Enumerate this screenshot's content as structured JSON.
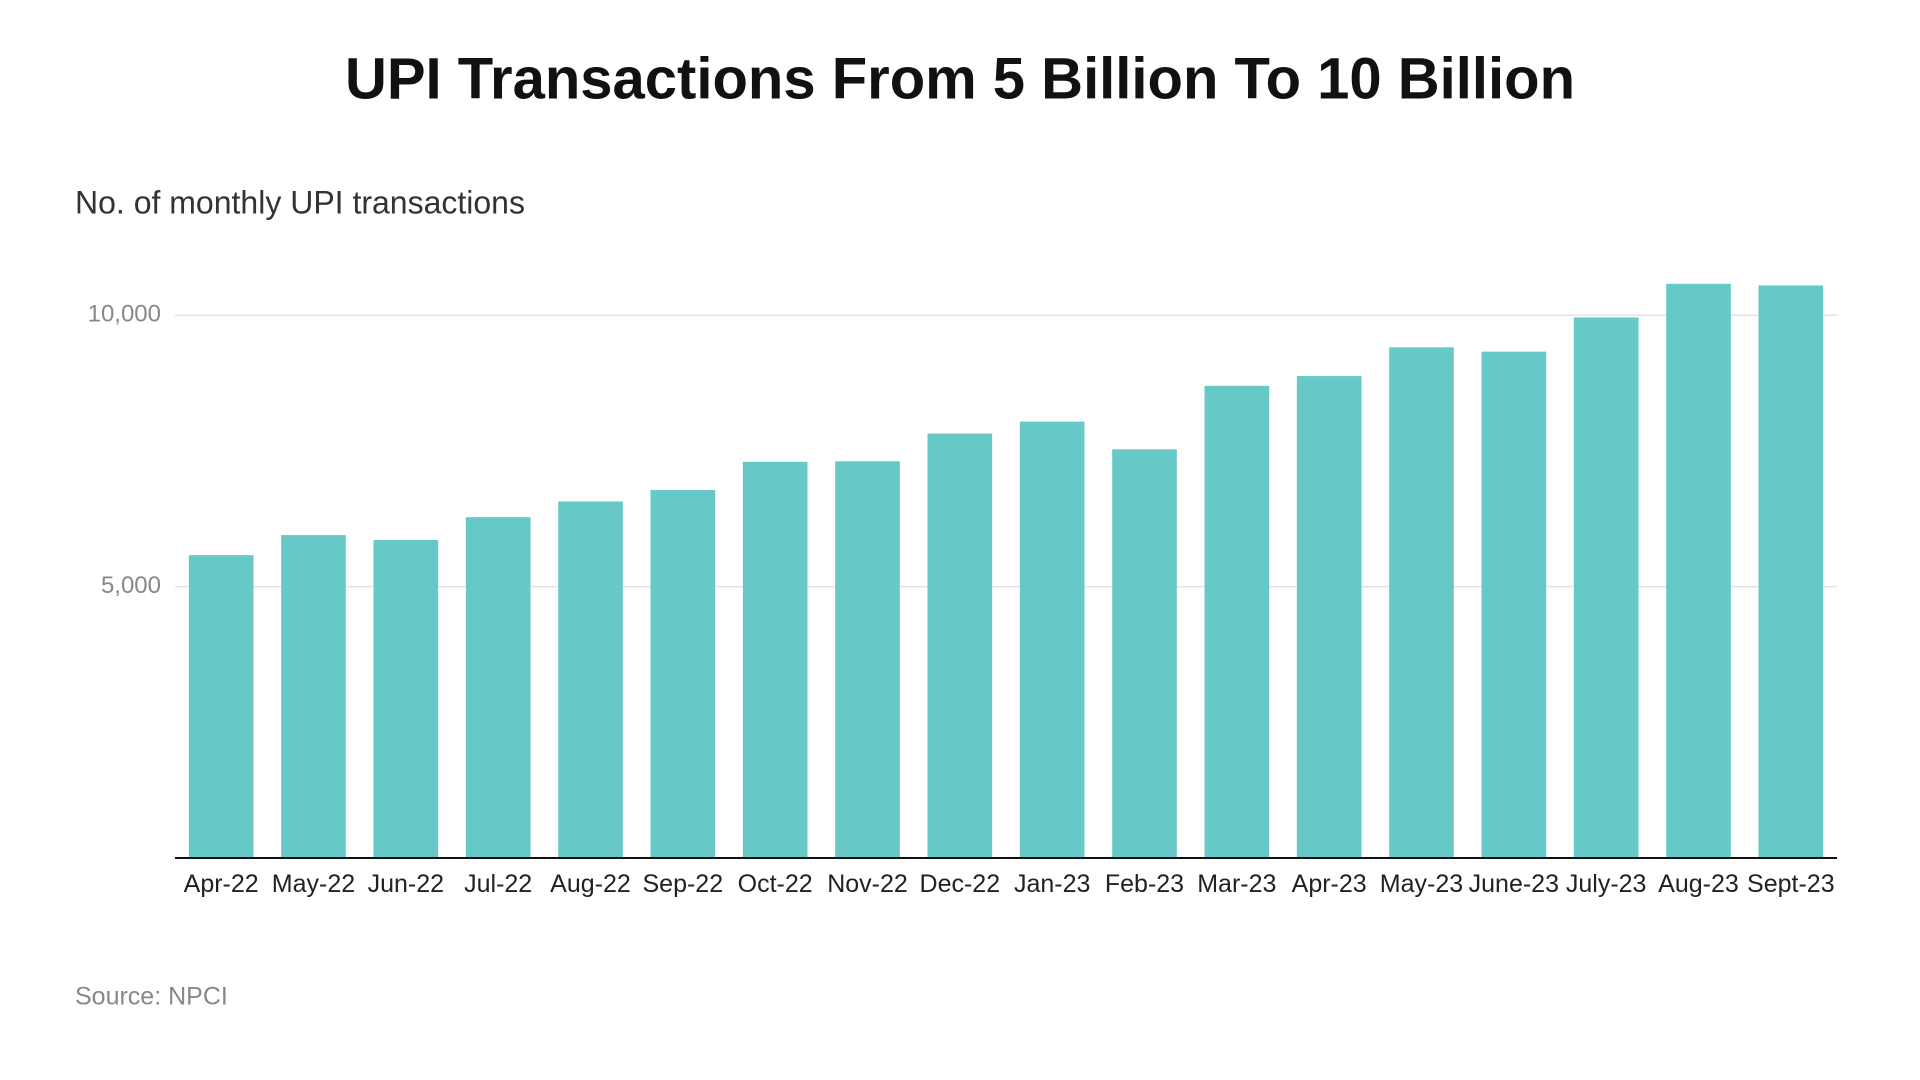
{
  "chart_data": {
    "type": "bar",
    "title": "UPI Transactions From 5 Billion To 10 Billion",
    "subtitle": "No. of monthly UPI transactions",
    "source": "Source: NPCI",
    "categories": [
      "Apr-22",
      "May-22",
      "Jun-22",
      "Jul-22",
      "Aug-22",
      "Sep-22",
      "Oct-22",
      "Nov-22",
      "Dec-22",
      "Jan-23",
      "Feb-23",
      "Mar-23",
      "Apr-23",
      "May-23",
      "June-23",
      "July-23",
      "Aug-23",
      "Sept-23"
    ],
    "values": [
      5580,
      5950,
      5860,
      6280,
      6570,
      6780,
      7300,
      7310,
      7820,
      8040,
      7530,
      8700,
      8880,
      9410,
      9330,
      9960,
      10580,
      10550
    ],
    "color": "#67c8c8",
    "ylim": [
      0,
      11000
    ],
    "yticks": [
      {
        "value": 5000,
        "label": "5,000"
      },
      {
        "value": 10000,
        "label": "10,000"
      }
    ],
    "grid": true
  }
}
